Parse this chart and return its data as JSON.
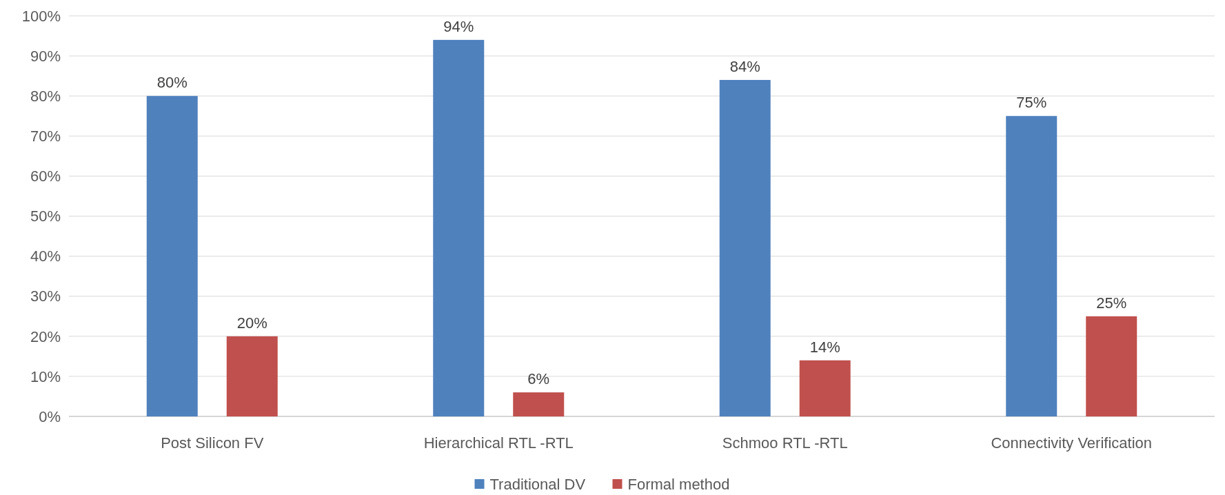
{
  "chart_data": {
    "type": "bar",
    "categories": [
      "Post Silicon FV",
      "Hierarchical RTL -RTL",
      "Schmoo RTL -RTL",
      "Connectivity Verification"
    ],
    "series": [
      {
        "name": "Traditional DV",
        "color": "#4f81bd",
        "values": [
          80,
          94,
          84,
          75
        ],
        "value_labels": [
          "80%",
          "94%",
          "84%",
          "75%"
        ]
      },
      {
        "name": "Formal method",
        "color": "#c0504d",
        "values": [
          20,
          6,
          14,
          25
        ],
        "value_labels": [
          "20%",
          "6%",
          "14%",
          "25%"
        ]
      }
    ],
    "ylim": [
      0,
      100
    ],
    "yticks": [
      {
        "value": 0,
        "label": "0%"
      },
      {
        "value": 10,
        "label": "10%"
      },
      {
        "value": 20,
        "label": "20%"
      },
      {
        "value": 30,
        "label": "30%"
      },
      {
        "value": 40,
        "label": "40%"
      },
      {
        "value": 50,
        "label": "50%"
      },
      {
        "value": 60,
        "label": "60%"
      },
      {
        "value": 70,
        "label": "70%"
      },
      {
        "value": 80,
        "label": "80%"
      },
      {
        "value": 90,
        "label": "90%"
      },
      {
        "value": 100,
        "label": "100%"
      }
    ],
    "grid": "y",
    "legend": "bottom"
  }
}
